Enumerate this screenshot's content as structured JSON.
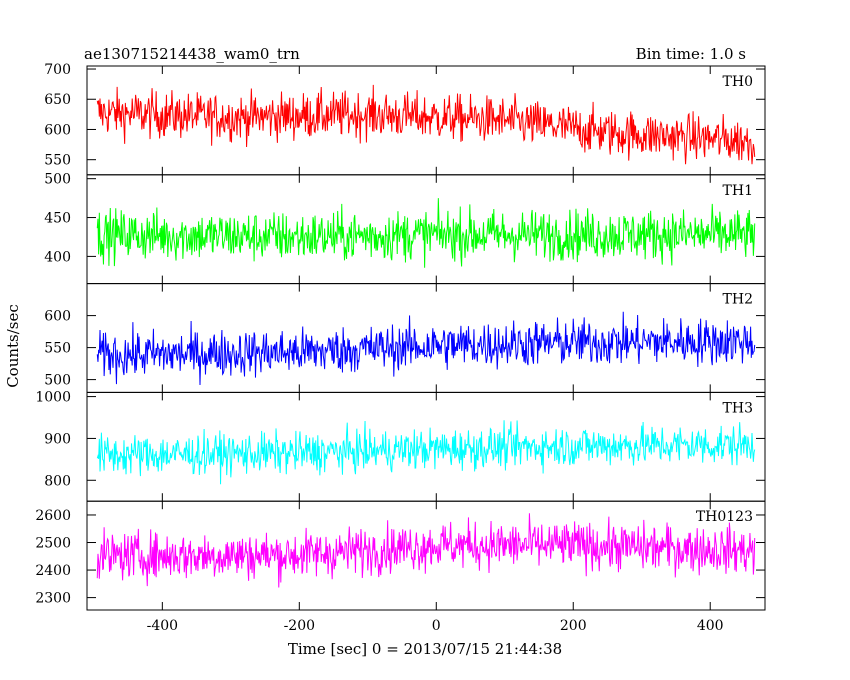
{
  "chart_data": {
    "type": "line",
    "title": "ae130715214438_wam0_trn",
    "subtitle": "Bin time: 1.0 s",
    "xlabel": "Time [sec] 0 = 2013/07/15 21:44:38",
    "ylabel": "Counts/sec",
    "xlim": [
      -510,
      480
    ],
    "xticks": [
      -400,
      -200,
      0,
      200,
      400
    ],
    "grid": false,
    "legend": "none",
    "panels": [
      {
        "name": "TH0",
        "color": "#ff0000",
        "ylim": [
          525,
          705
        ],
        "yticks": [
          550,
          600,
          650,
          700
        ],
        "mean_trend": [
          [
            -495,
            628
          ],
          [
            -300,
            620
          ],
          [
            -100,
            625
          ],
          [
            100,
            615
          ],
          [
            250,
            595
          ],
          [
            465,
            580
          ]
        ],
        "noise_amplitude": 38
      },
      {
        "name": "TH1",
        "color": "#00ff00",
        "ylim": [
          365,
          505
        ],
        "yticks": [
          400,
          450,
          500
        ],
        "mean_trend": [
          [
            -495,
            428
          ],
          [
            -200,
            425
          ],
          [
            0,
            428
          ],
          [
            200,
            428
          ],
          [
            465,
            428
          ]
        ],
        "noise_amplitude": 32
      },
      {
        "name": "TH2",
        "color": "#0000ff",
        "ylim": [
          480,
          650
        ],
        "yticks": [
          500,
          550,
          600
        ],
        "mean_trend": [
          [
            -495,
            538
          ],
          [
            -200,
            543
          ],
          [
            0,
            553
          ],
          [
            200,
            558
          ],
          [
            465,
            560
          ]
        ],
        "noise_amplitude": 36
      },
      {
        "name": "TH3",
        "color": "#00ffff",
        "ylim": [
          750,
          1010
        ],
        "yticks": [
          800,
          900,
          1000
        ],
        "mean_trend": [
          [
            -495,
            860
          ],
          [
            -200,
            865
          ],
          [
            0,
            875
          ],
          [
            200,
            882
          ],
          [
            465,
            885
          ]
        ],
        "noise_amplitude": 48
      },
      {
        "name": "TH0123",
        "color": "#ff00ff",
        "ylim": [
          2255,
          2650
        ],
        "yticks": [
          2300,
          2400,
          2500,
          2600
        ],
        "mean_trend": [
          [
            -495,
            2450
          ],
          [
            -200,
            2455
          ],
          [
            0,
            2490
          ],
          [
            200,
            2490
          ],
          [
            465,
            2470
          ]
        ],
        "noise_amplitude": 85
      }
    ]
  }
}
